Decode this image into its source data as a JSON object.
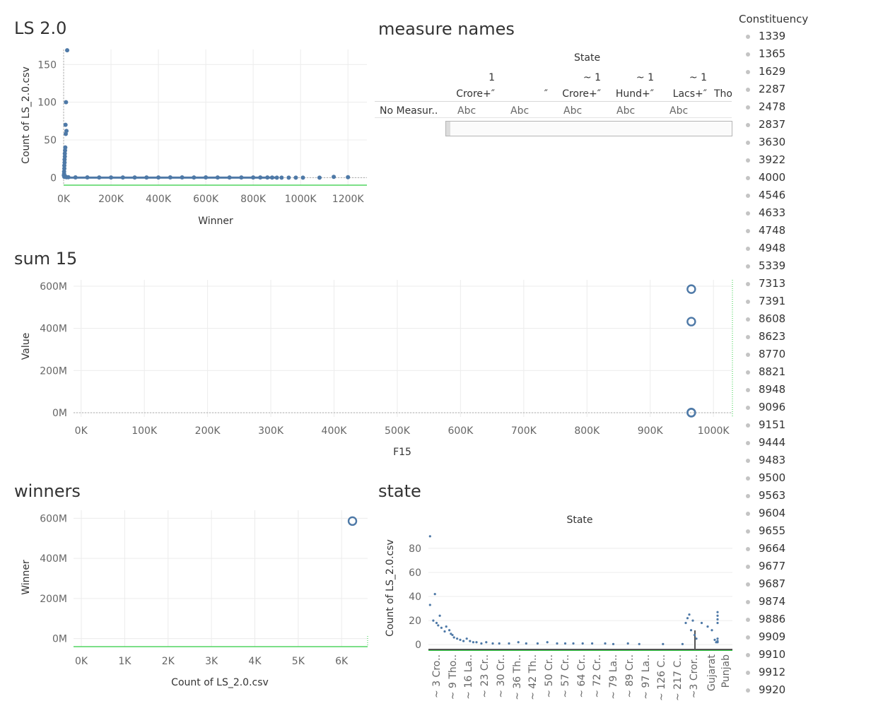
{
  "sheets": {
    "ls": {
      "title": "LS 2.0"
    },
    "measure": {
      "title": "measure names"
    },
    "sum15": {
      "title": "sum 15"
    },
    "winners": {
      "title": "winners"
    },
    "state": {
      "title": "state"
    }
  },
  "crosstab": {
    "header_title": "State",
    "columns": [
      {
        "top": "1",
        "bottom": "Crore+″"
      },
      {
        "top": "",
        "bottom": "″"
      },
      {
        "top": "~ 1",
        "bottom": "Crore+″"
      },
      {
        "top": "~ 1",
        "bottom": "Hund+″"
      },
      {
        "top": "~ 1",
        "bottom": "Lacs+″"
      },
      {
        "top": "",
        "bottom": "Tho"
      }
    ],
    "row_label": "No Measur..",
    "cell_value": "Abc"
  },
  "legend": {
    "title": "Constituency",
    "items": [
      "1339",
      "1365",
      "1629",
      "2287",
      "2478",
      "2837",
      "3630",
      "3922",
      "4000",
      "4546",
      "4633",
      "4748",
      "4948",
      "5339",
      "7313",
      "7391",
      "8608",
      "8623",
      "8770",
      "8821",
      "8948",
      "9096",
      "9151",
      "9444",
      "9483",
      "9500",
      "9563",
      "9604",
      "9655",
      "9664",
      "9677",
      "9687",
      "9874",
      "9886",
      "9909",
      "9910",
      "9912",
      "9920"
    ]
  },
  "colors": {
    "mark": "#4e79a7",
    "grid": "#ececec",
    "reference": "#2ecc40",
    "zero_line": "#aaaaaa",
    "legend_dot": "#c4c4c4"
  },
  "chart_data": [
    {
      "id": "ls",
      "type": "scatter",
      "title": "LS 2.0",
      "xlabel": "Winner",
      "ylabel": "Count of LS_2.0.csv",
      "xlim": [
        0,
        1280000
      ],
      "ylim": [
        -10,
        170
      ],
      "xticks": [
        0,
        200000,
        400000,
        600000,
        800000,
        1000000,
        1200000
      ],
      "xticklabels": [
        "0K",
        "200K",
        "400K",
        "600K",
        "800K",
        "1000K",
        "1200K"
      ],
      "yticks": [
        0,
        50,
        100,
        150
      ],
      "yticklabels": [
        "0",
        "50",
        "100",
        "150"
      ],
      "reference_line_y": -10,
      "points": [
        [
          15000,
          169
        ],
        [
          10000,
          100
        ],
        [
          8000,
          70
        ],
        [
          12000,
          62
        ],
        [
          9000,
          58
        ],
        [
          7000,
          40
        ],
        [
          6000,
          36
        ],
        [
          5000,
          32
        ],
        [
          5000,
          28
        ],
        [
          4000,
          24
        ],
        [
          4000,
          20
        ],
        [
          3000,
          16
        ],
        [
          3000,
          12
        ],
        [
          2000,
          8
        ],
        [
          2000,
          5
        ],
        [
          1000,
          3
        ],
        [
          6000,
          2
        ],
        [
          3000,
          1
        ],
        [
          8000,
          1
        ],
        [
          12000,
          0.5
        ],
        [
          20000,
          0.5
        ],
        [
          50000,
          0.3
        ],
        [
          100000,
          0.3
        ],
        [
          150000,
          0.2
        ],
        [
          200000,
          0.2
        ],
        [
          250000,
          0.2
        ],
        [
          300000,
          0.2
        ],
        [
          350000,
          0.2
        ],
        [
          400000,
          0.2
        ],
        [
          450000,
          0.3
        ],
        [
          500000,
          0.3
        ],
        [
          550000,
          0.2
        ],
        [
          600000,
          0.3
        ],
        [
          650000,
          0.2
        ],
        [
          700000,
          0.2
        ],
        [
          750000,
          0.2
        ],
        [
          800000,
          0.2
        ],
        [
          830000,
          0.2
        ],
        [
          860000,
          0.2
        ],
        [
          880000,
          0.1
        ],
        [
          900000,
          0
        ],
        [
          920000,
          0
        ],
        [
          950000,
          0
        ],
        [
          980000,
          0
        ],
        [
          1010000,
          0
        ],
        [
          1080000,
          0
        ],
        [
          1140000,
          1
        ],
        [
          1200000,
          0.5
        ]
      ]
    },
    {
      "id": "sum15",
      "type": "scatter",
      "title": "sum 15",
      "xlabel": "F15",
      "ylabel": "Value",
      "xlim": [
        -12000,
        1030000
      ],
      "ylim": [
        -20000000,
        630000000
      ],
      "xticks": [
        0,
        100000,
        200000,
        300000,
        400000,
        500000,
        600000,
        700000,
        800000,
        900000,
        1000000
      ],
      "xticklabels": [
        "0K",
        "100K",
        "200K",
        "300K",
        "400K",
        "500K",
        "600K",
        "700K",
        "800K",
        "900K",
        "1000K"
      ],
      "yticks": [
        0,
        200000000,
        400000000,
        600000000
      ],
      "yticklabels": [
        "0M",
        "200M",
        "400M",
        "600M"
      ],
      "points": [
        [
          965000,
          586000000
        ],
        [
          965000,
          432000000
        ],
        [
          965000,
          1000000
        ],
        [
          965000,
          0
        ]
      ]
    },
    {
      "id": "winners",
      "type": "scatter",
      "title": "winners",
      "xlabel": "Count of LS_2.0.csv",
      "ylabel": "Winner",
      "xlim": [
        -180,
        6600
      ],
      "ylim": [
        -40000000,
        640000000
      ],
      "xticks": [
        0,
        1000,
        2000,
        3000,
        4000,
        5000,
        6000
      ],
      "xticklabels": [
        "0K",
        "1K",
        "2K",
        "3K",
        "4K",
        "5K",
        "6K"
      ],
      "yticks": [
        0,
        200000000,
        400000000,
        600000000
      ],
      "yticklabels": [
        "0M",
        "200M",
        "400M",
        "600M"
      ],
      "points": [
        [
          6250,
          586000000
        ]
      ]
    },
    {
      "id": "state",
      "type": "scatter",
      "title": "state",
      "header": "State",
      "xlabel": "",
      "ylabel": "Count of LS_2.0.csv",
      "ylim": [
        -4,
        94
      ],
      "yticks": [
        0,
        20,
        40,
        60,
        80
      ],
      "yticklabels": [
        "0",
        "20",
        "40",
        "60",
        "80"
      ],
      "categories": [
        "~ 3 Cro..",
        "~ 9 Tho..",
        "~ 16 La..",
        "~ 23 Cr..",
        "~ 30 Cr..",
        "~ 36 Th..",
        "~ 42 Th..",
        "~ 50 Cr..",
        "~ 57 Cr..",
        "~ 64 Cr..",
        "~ 72 Cr..",
        "~ 79 La..",
        "~ 89 Cr..",
        "~ 97 La..",
        "~ 126 C..",
        "~ 217 C..",
        "~3 Cror..",
        "Gujarat",
        "Punjab"
      ],
      "points": [
        [
          0.1,
          90
        ],
        [
          0.1,
          33
        ],
        [
          0.3,
          20
        ],
        [
          0.4,
          42
        ],
        [
          0.5,
          18
        ],
        [
          0.6,
          16
        ],
        [
          0.7,
          24
        ],
        [
          0.8,
          14
        ],
        [
          1.0,
          11
        ],
        [
          1.1,
          15
        ],
        [
          1.3,
          12
        ],
        [
          1.4,
          9
        ],
        [
          1.5,
          8
        ],
        [
          1.6,
          6
        ],
        [
          1.8,
          5
        ],
        [
          2.0,
          4
        ],
        [
          2.2,
          3
        ],
        [
          2.4,
          5
        ],
        [
          2.6,
          3
        ],
        [
          2.8,
          2
        ],
        [
          3.0,
          2
        ],
        [
          3.3,
          1
        ],
        [
          3.6,
          2
        ],
        [
          4.0,
          1
        ],
        [
          4.4,
          1
        ],
        [
          5.0,
          1
        ],
        [
          5.6,
          2
        ],
        [
          6.1,
          1
        ],
        [
          6.8,
          1
        ],
        [
          7.4,
          2
        ],
        [
          8.0,
          1
        ],
        [
          8.5,
          1
        ],
        [
          9.0,
          1
        ],
        [
          9.6,
          1
        ],
        [
          10.2,
          1
        ],
        [
          11.0,
          1
        ],
        [
          11.5,
          0.5
        ],
        [
          12.4,
          1
        ],
        [
          13.1,
          0.5
        ],
        [
          14.6,
          0.5
        ],
        [
          15.8,
          0.5
        ],
        [
          16.0,
          18
        ],
        [
          16.1,
          22
        ],
        [
          16.2,
          25
        ],
        [
          16.3,
          12
        ],
        [
          16.4,
          20
        ],
        [
          16.5,
          8
        ],
        [
          16.6,
          5
        ],
        [
          16.9,
          18
        ],
        [
          17.3,
          15
        ],
        [
          17.6,
          12
        ],
        [
          17.8,
          4
        ],
        [
          18.0,
          5
        ],
        [
          18.1,
          3
        ],
        [
          18.4,
          27
        ],
        [
          18.5,
          24
        ],
        [
          18.7,
          21
        ],
        [
          18.9,
          18
        ],
        [
          17.9,
          2
        ],
        [
          18.3,
          2
        ]
      ]
    }
  ]
}
